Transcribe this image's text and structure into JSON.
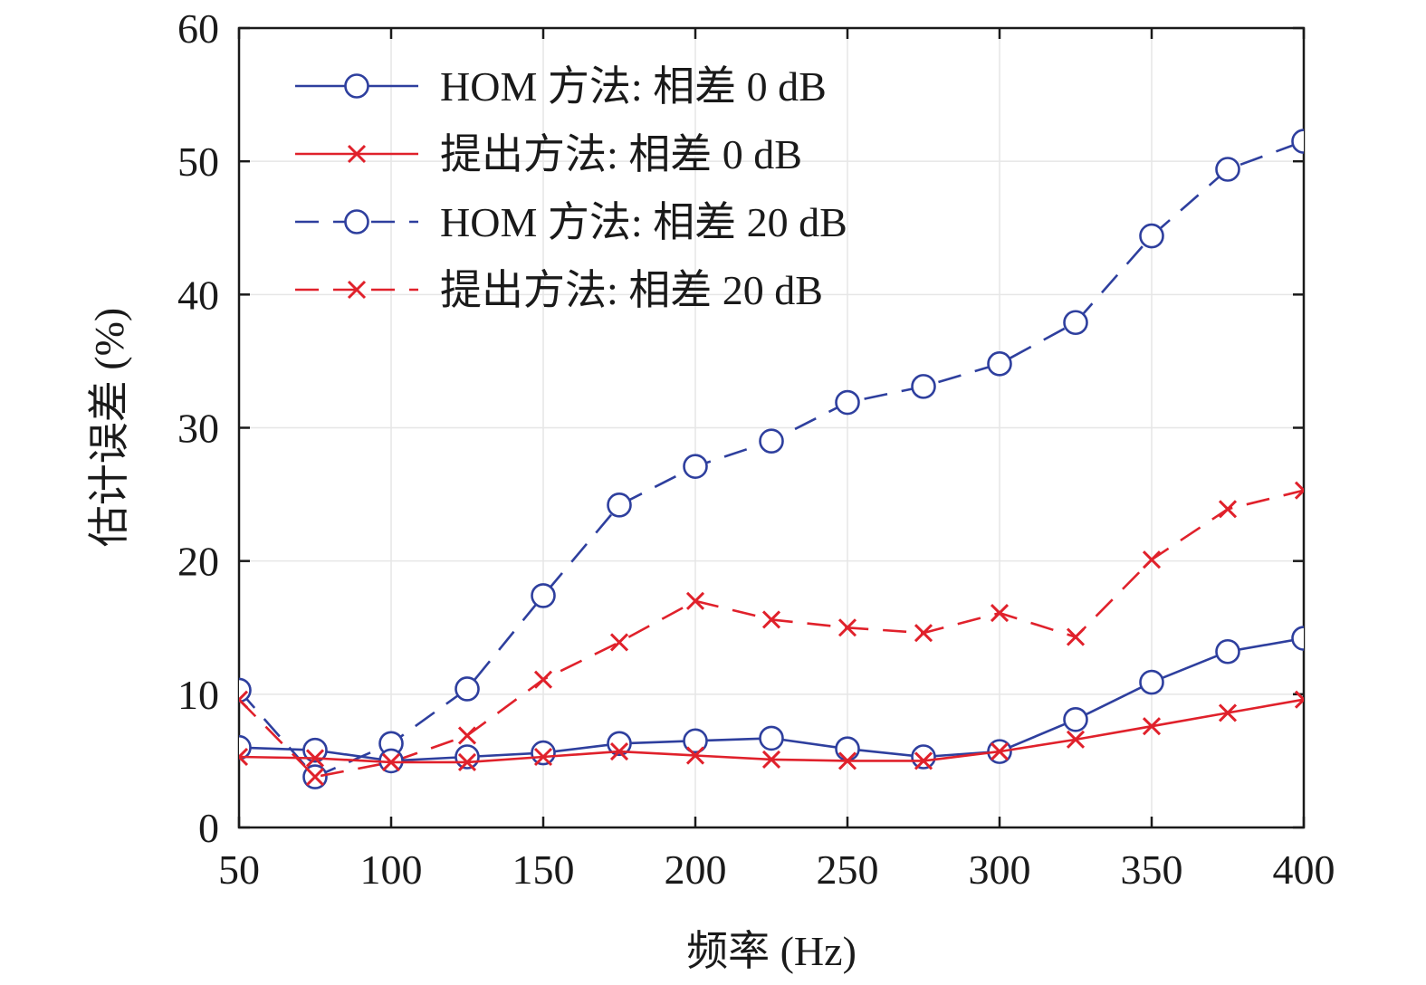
{
  "chart_data": {
    "type": "line",
    "title": "",
    "xlabel": "频率 (Hz)",
    "ylabel": "估计误差 (%)",
    "xlim": [
      50,
      400
    ],
    "ylim": [
      0,
      60
    ],
    "xticks": [
      50,
      100,
      150,
      200,
      250,
      300,
      350,
      400
    ],
    "yticks": [
      0,
      10,
      20,
      30,
      40,
      50,
      60
    ],
    "grid": true,
    "legend_position": "top-left",
    "x": [
      50,
      75,
      100,
      125,
      150,
      175,
      200,
      225,
      250,
      275,
      300,
      325,
      350,
      375,
      400
    ],
    "series": [
      {
        "name": "HOM 方法: 相差 0 dB",
        "color": "#2e3f9e",
        "line_style": "solid",
        "marker": "circle",
        "values": [
          6.0,
          5.8,
          5.0,
          5.3,
          5.6,
          6.3,
          6.5,
          6.7,
          5.9,
          5.3,
          5.7,
          8.1,
          10.9,
          13.2,
          14.2
        ]
      },
      {
        "name": "提出方法: 相差 0 dB",
        "color": "#e0212b",
        "line_style": "solid",
        "marker": "x",
        "values": [
          5.3,
          5.2,
          4.9,
          4.9,
          5.3,
          5.7,
          5.4,
          5.1,
          5.0,
          5.0,
          5.7,
          6.6,
          7.6,
          8.6,
          9.6
        ]
      },
      {
        "name": "HOM 方法: 相差 20 dB",
        "color": "#2e3f9e",
        "line_style": "dashed",
        "marker": "circle",
        "values": [
          10.3,
          3.8,
          6.3,
          10.4,
          17.4,
          24.2,
          27.1,
          29.0,
          31.9,
          33.1,
          34.8,
          37.9,
          44.4,
          49.4,
          51.5
        ]
      },
      {
        "name": "提出方法: 相差 20 dB",
        "color": "#e0212b",
        "line_style": "dashed",
        "marker": "x",
        "values": [
          9.6,
          3.8,
          4.9,
          6.9,
          11.1,
          13.9,
          17.0,
          15.6,
          15.0,
          14.6,
          16.1,
          14.3,
          20.1,
          23.9,
          25.3
        ]
      }
    ]
  }
}
